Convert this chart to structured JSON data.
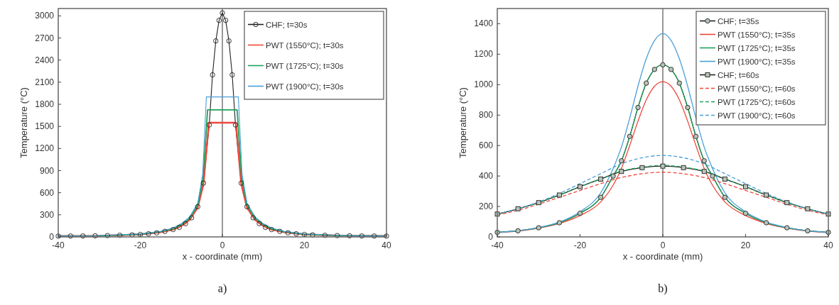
{
  "chart_data": [
    {
      "type": "line",
      "xlabel": "x - coordinate (mm)",
      "ylabel": "Temperature (°C)",
      "xlim": [
        -40,
        40
      ],
      "xticks": [
        -40,
        -20,
        0,
        20,
        40
      ],
      "ylim": [
        0,
        3100
      ],
      "yticks": [
        0,
        300,
        600,
        900,
        1200,
        1500,
        1800,
        2100,
        2400,
        2700,
        3000
      ],
      "legend": "top right",
      "annotations": [
        "a)"
      ],
      "ref_lines": [
        {
          "axis": "x",
          "value": 0,
          "color": "#555555"
        }
      ],
      "series": [
        {
          "name": "CHF; t=30s",
          "color": "#222222",
          "marker": "circle",
          "line_style": "solid",
          "x": [
            -40,
            -37,
            -34,
            -31,
            -28,
            -25,
            -22,
            -20,
            -18,
            -16,
            -14,
            -12,
            -10.5,
            -9,
            -7.5,
            -6,
            -4.6,
            -3.2,
            -2.4,
            -1.6,
            -0.8,
            0,
            0.8,
            1.6,
            2.4,
            3.2,
            4.6,
            6,
            7.5,
            9,
            10.5,
            12,
            14,
            16,
            18,
            20,
            22,
            25,
            28,
            31,
            34,
            37,
            40
          ],
          "values": [
            11,
            12,
            13,
            15,
            18,
            22,
            27,
            33,
            42,
            55,
            75,
            100,
            130,
            180,
            260,
            410,
            730,
            1520,
            2200,
            2660,
            2940,
            3040,
            2940,
            2660,
            2200,
            1520,
            730,
            410,
            260,
            180,
            130,
            100,
            75,
            55,
            42,
            33,
            27,
            22,
            18,
            15,
            13,
            12,
            11
          ]
        },
        {
          "name": "PWT (1550°C); t=30s",
          "color": "#f0463c",
          "marker": "none",
          "line_style": "solid",
          "x": [
            -40,
            -30,
            -20,
            -15,
            -12,
            -10,
            -8,
            -6,
            -4.6,
            -3.3,
            3.3,
            4.6,
            6,
            8,
            10,
            12,
            15,
            20,
            30,
            40
          ],
          "values": [
            11,
            15,
            33,
            65,
            100,
            150,
            230,
            400,
            720,
            1550,
            1550,
            720,
            400,
            230,
            150,
            100,
            65,
            33,
            15,
            11
          ]
        },
        {
          "name": "PWT (1725°C); t=30s",
          "color": "#1fa35a",
          "marker": "none",
          "line_style": "solid",
          "x": [
            -40,
            -30,
            -20,
            -15,
            -12,
            -10,
            -8,
            -6,
            -4.7,
            -3.6,
            3.6,
            4.7,
            6,
            8,
            10,
            12,
            15,
            20,
            30,
            40
          ],
          "values": [
            12,
            16,
            36,
            70,
            110,
            165,
            250,
            430,
            800,
            1725,
            1725,
            800,
            430,
            250,
            165,
            110,
            70,
            36,
            16,
            12
          ]
        },
        {
          "name": "PWT (1900°C); t=30s",
          "color": "#4a9fd8",
          "marker": "none",
          "line_style": "solid",
          "x": [
            -40,
            -30,
            -20,
            -15,
            -12,
            -10,
            -8,
            -6,
            -4.8,
            -3.9,
            3.9,
            4.8,
            6,
            8,
            10,
            12,
            15,
            20,
            30,
            40
          ],
          "values": [
            13,
            17,
            40,
            76,
            120,
            180,
            270,
            460,
            850,
            1900,
            1900,
            850,
            460,
            270,
            180,
            120,
            76,
            40,
            17,
            13
          ]
        }
      ]
    },
    {
      "type": "line",
      "xlabel": "x - coordinate (mm)",
      "ylabel": "Temperature (°C)",
      "xlim": [
        -40,
        40
      ],
      "xticks": [
        -40,
        -20,
        0,
        20,
        40
      ],
      "ylim": [
        0,
        1500
      ],
      "yticks": [
        0,
        200,
        400,
        600,
        800,
        1000,
        1200,
        1400
      ],
      "legend": "top right",
      "annotations": [
        "b)"
      ],
      "ref_lines": [
        {
          "axis": "x",
          "value": 0,
          "color": "#555555"
        }
      ],
      "series": [
        {
          "name": "CHF; t=35s",
          "color": "#222222",
          "marker": "circle",
          "line_style": "solid",
          "x": [
            -40,
            -35,
            -30,
            -25,
            -20,
            -15,
            -12,
            -10,
            -8,
            -6,
            -4,
            -2,
            0,
            2,
            4,
            6,
            8,
            10,
            12,
            15,
            20,
            25,
            30,
            35,
            40
          ],
          "values": [
            30,
            40,
            60,
            93,
            155,
            260,
            400,
            500,
            660,
            850,
            1010,
            1100,
            1130,
            1100,
            1010,
            850,
            660,
            500,
            400,
            260,
            155,
            93,
            60,
            40,
            30
          ]
        },
        {
          "name": "PWT (1550°C); t=35s",
          "color": "#f0463c",
          "marker": "none",
          "line_style": "solid",
          "x": [
            -40,
            -35,
            -30,
            -25,
            -20,
            -15,
            -12,
            -10,
            -8,
            -6,
            -4,
            -2,
            0,
            2,
            4,
            6,
            8,
            10,
            12,
            15,
            20,
            25,
            30,
            35,
            40
          ],
          "values": [
            28,
            38,
            58,
            88,
            140,
            230,
            340,
            450,
            600,
            760,
            900,
            990,
            1020,
            990,
            900,
            760,
            600,
            450,
            340,
            230,
            140,
            88,
            58,
            38,
            28
          ]
        },
        {
          "name": "PWT (1725°C); t=35s",
          "color": "#1fa35a",
          "marker": "none",
          "line_style": "solid",
          "x": [
            -40,
            -35,
            -30,
            -25,
            -20,
            -15,
            -12,
            -10,
            -8,
            -6,
            -4,
            -2,
            0,
            2,
            4,
            6,
            8,
            10,
            12,
            15,
            20,
            25,
            30,
            35,
            40
          ],
          "values": [
            30,
            40,
            60,
            93,
            155,
            260,
            400,
            500,
            660,
            850,
            1010,
            1100,
            1130,
            1100,
            1010,
            850,
            660,
            500,
            400,
            260,
            155,
            93,
            60,
            40,
            30
          ]
        },
        {
          "name": "PWT (1900°C); t=35s",
          "color": "#4a9fd8",
          "marker": "none",
          "line_style": "solid",
          "x": [
            -40,
            -35,
            -30,
            -25,
            -20,
            -15,
            -12,
            -10,
            -8,
            -6,
            -4,
            -2,
            0,
            2,
            4,
            6,
            8,
            10,
            12,
            15,
            20,
            25,
            30,
            35,
            40
          ],
          "values": [
            30,
            40,
            62,
            97,
            165,
            290,
            450,
            590,
            780,
            990,
            1170,
            1290,
            1335,
            1290,
            1170,
            990,
            780,
            590,
            450,
            290,
            165,
            97,
            62,
            40,
            30
          ]
        },
        {
          "name": "CHF; t=60s",
          "color": "#222222",
          "marker": "square",
          "line_style": "solid",
          "x": [
            -40,
            -35,
            -30,
            -25,
            -20,
            -15,
            -10,
            -5,
            0,
            5,
            10,
            15,
            20,
            25,
            30,
            35,
            40
          ],
          "values": [
            150,
            185,
            225,
            275,
            330,
            380,
            430,
            455,
            465,
            455,
            430,
            380,
            330,
            275,
            225,
            185,
            150
          ]
        },
        {
          "name": "PWT (1550°C); t=60s",
          "color": "#f0463c",
          "marker": "none",
          "line_style": "dashed",
          "x": [
            -40,
            -35,
            -30,
            -25,
            -20,
            -15,
            -10,
            -5,
            0,
            5,
            10,
            15,
            20,
            25,
            30,
            35,
            40
          ],
          "values": [
            145,
            175,
            215,
            260,
            305,
            350,
            390,
            415,
            425,
            415,
            390,
            350,
            305,
            260,
            215,
            175,
            145
          ]
        },
        {
          "name": "PWT (1725°C); t=60s",
          "color": "#1fa35a",
          "marker": "none",
          "line_style": "dashed",
          "x": [
            -40,
            -35,
            -30,
            -25,
            -20,
            -15,
            -10,
            -5,
            0,
            5,
            10,
            15,
            20,
            25,
            30,
            35,
            40
          ],
          "values": [
            150,
            185,
            225,
            275,
            330,
            382,
            432,
            458,
            470,
            458,
            432,
            382,
            330,
            275,
            225,
            185,
            150
          ]
        },
        {
          "name": "PWT (1900°C); t=60s",
          "color": "#4a9fd8",
          "marker": "none",
          "line_style": "dashed",
          "x": [
            -40,
            -35,
            -30,
            -25,
            -20,
            -15,
            -10,
            -5,
            0,
            5,
            10,
            15,
            20,
            25,
            30,
            35,
            40
          ],
          "values": [
            150,
            185,
            230,
            285,
            350,
            415,
            480,
            520,
            535,
            520,
            480,
            415,
            350,
            285,
            230,
            185,
            150
          ]
        }
      ]
    }
  ]
}
